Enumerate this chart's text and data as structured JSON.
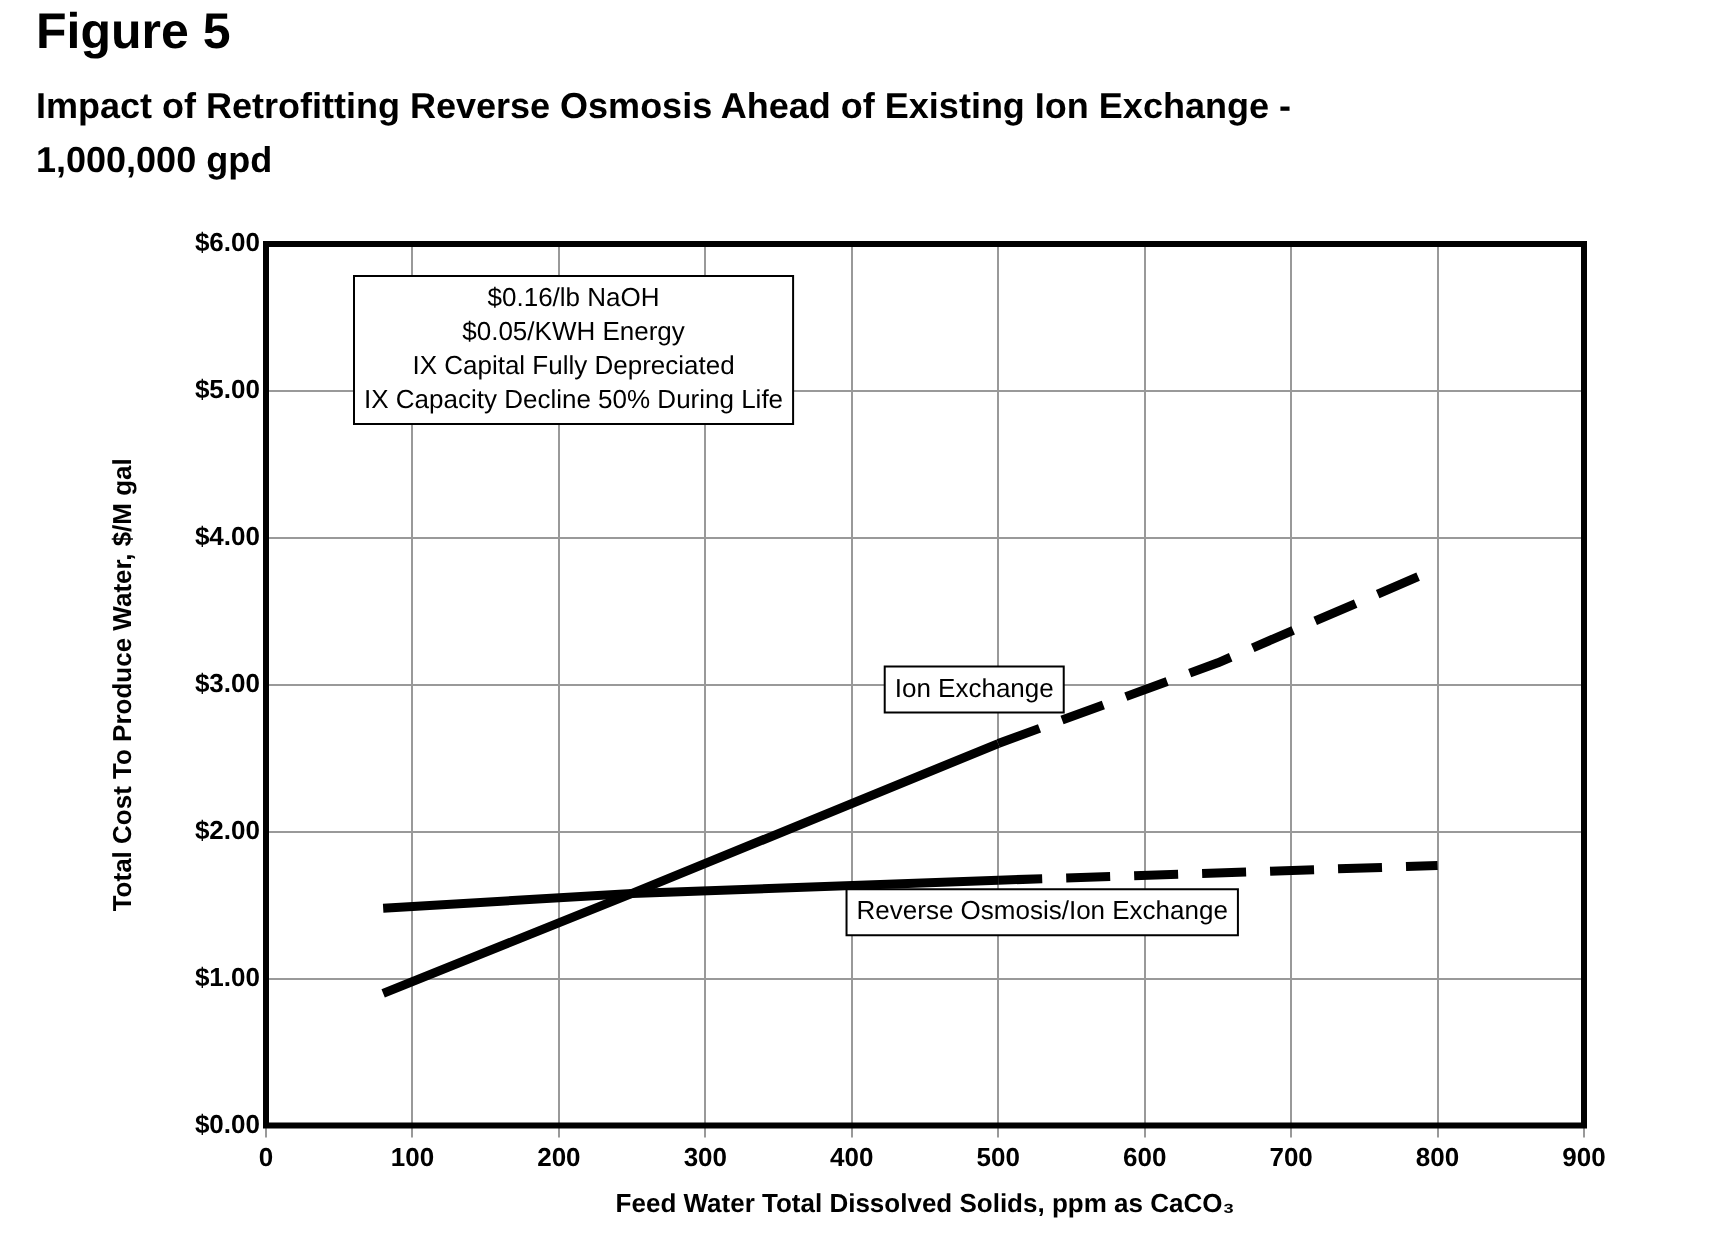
{
  "chart_data": {
    "type": "line",
    "title": "Figure 5",
    "subtitle": "Impact of Retrofitting Reverse Osmosis Ahead of Existing Ion Exchange - 1,000,000 gpd",
    "xlabel": "Feed Water Total Dissolved Solids, ppm as CaCO₃",
    "ylabel": "Total Cost To Produce Water, $/M gal",
    "series": [
      {
        "name": "Ion Exchange",
        "color": "#000000",
        "line_style": "solid",
        "x": [
          80,
          250,
          500
        ],
        "values": [
          0.9,
          1.58,
          2.6
        ]
      },
      {
        "color": "#000000",
        "line_style": "dashed",
        "x": [
          500,
          650,
          790
        ],
        "values": [
          2.6,
          3.15,
          3.75
        ]
      },
      {
        "name": "Reverse Osmosis/Ion Exchange",
        "color": "#000000",
        "line_style": "solid",
        "x": [
          80,
          250,
          500
        ],
        "values": [
          1.48,
          1.58,
          1.67
        ]
      },
      {
        "color": "#000000",
        "line_style": "dashed",
        "x": [
          500,
          800
        ],
        "values": [
          1.67,
          1.77
        ]
      }
    ],
    "xlim": [
      0,
      900
    ],
    "xticks": [
      0,
      100,
      200,
      300,
      400,
      500,
      600,
      700,
      800,
      900
    ],
    "ylim": [
      0,
      6
    ],
    "yticks": [
      {
        "value": 0,
        "label": "$0.00"
      },
      {
        "value": 1,
        "label": "$1.00"
      },
      {
        "value": 2,
        "label": "$2.00"
      },
      {
        "value": 3,
        "label": "$3.00"
      },
      {
        "value": 4,
        "label": "$4.00"
      },
      {
        "value": 5,
        "label": "$5.00"
      },
      {
        "value": 6,
        "label": "$6.00"
      }
    ],
    "grid": true,
    "legend": false,
    "marker": "none",
    "annotations": [
      "$0.16/lb NaOH\n$0.05/KWH Energy\nIX Capital Fully Depreciated\nIX Capacity Decline 50% During Life"
    ]
  }
}
